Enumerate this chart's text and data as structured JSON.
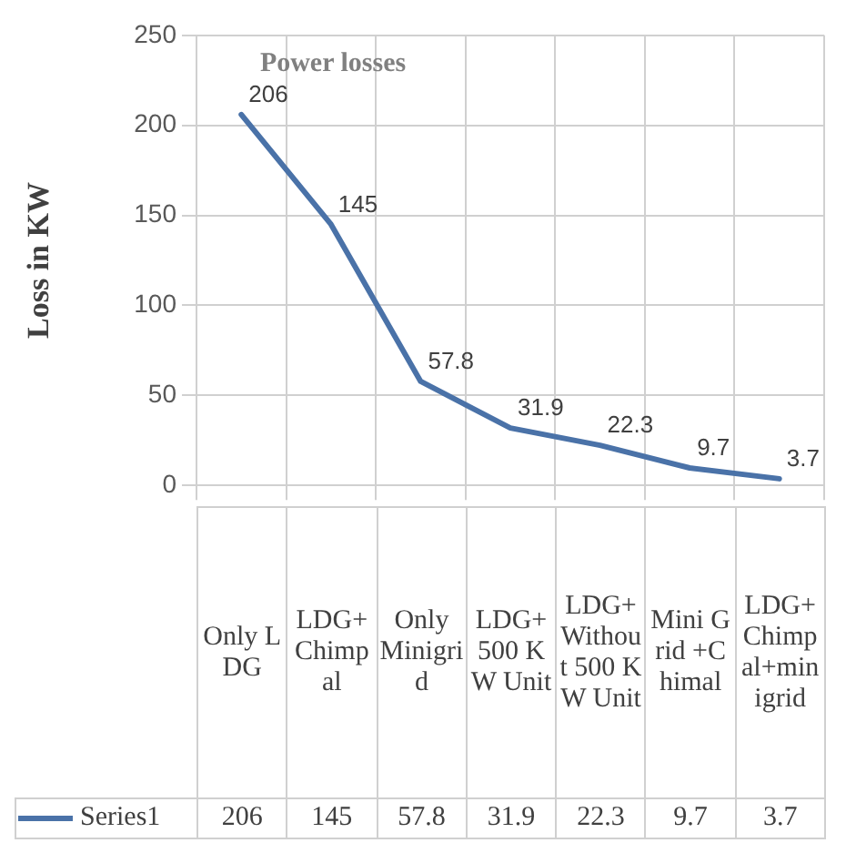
{
  "chart_data": {
    "type": "line",
    "title": "Power losses",
    "ylabel": "Loss in KW",
    "categories": [
      "Only LDG",
      "LDG+ Chimpal",
      "Only Minigrid",
      "LDG+ 500 KW Unit",
      "LDG+ Without 500 KW Unit",
      "Mini Grid +Chimal",
      "LDG+Chimpal+minigrid"
    ],
    "series": [
      {
        "name": "Series1",
        "color": "#4a72a8",
        "values": [
          206,
          145,
          57.8,
          31.9,
          22.3,
          9.7,
          3.7
        ],
        "value_labels": [
          "206",
          "145",
          "57.8",
          "31.9",
          "22.3",
          "9.7",
          "3.7"
        ]
      }
    ],
    "ylim": [
      0,
      250
    ],
    "yticks": [
      0,
      50,
      100,
      150,
      200,
      250
    ],
    "grid": true,
    "legend": "bottom",
    "marker": "none",
    "line_style": "solid"
  }
}
